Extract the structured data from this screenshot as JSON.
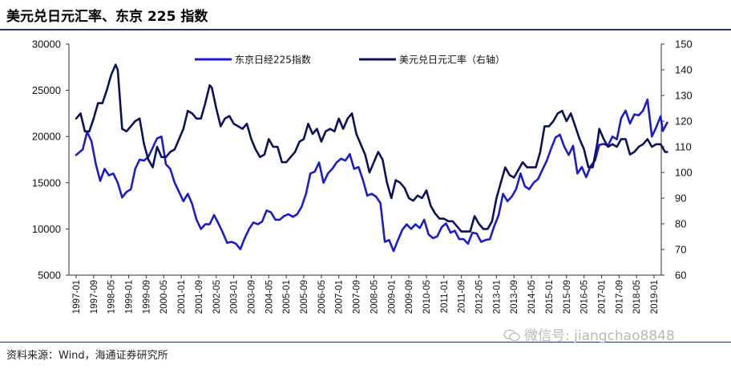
{
  "title": "美元兑日元汇率、东京 225 指数",
  "source": "资料来源：Wind，海通证券研究所",
  "watermark": "微信号: jiangchao8848",
  "colors": {
    "nikkei": "#1c1cc8",
    "usdjpy": "#0b1259",
    "rule": "#1f3864"
  },
  "chart_data": {
    "type": "line",
    "grid": false,
    "legend": "top-center",
    "x": [
      "1997-01",
      "1997-09",
      "1998-05",
      "1999-01",
      "1999-09",
      "2000-05",
      "2001-01",
      "2001-09",
      "2002-05",
      "2003-01",
      "2003-09",
      "2004-05",
      "2005-01",
      "2005-09",
      "2006-05",
      "2007-01",
      "2007-09",
      "2008-05",
      "2009-01",
      "2009-09",
      "2010-05",
      "2011-01",
      "2011-09",
      "2012-05",
      "2013-01",
      "2013-09",
      "2014-05",
      "2015-01",
      "2015-09",
      "2016-05",
      "2017-01",
      "2017-09",
      "2018-05",
      "2019-01"
    ],
    "y_left_ticks": [
      "30000",
      "25000",
      "20000",
      "15000",
      "10000",
      "5000"
    ],
    "y_right_ticks": [
      "150",
      "140",
      "130",
      "120",
      "110",
      "100",
      "90",
      "80",
      "70",
      "60"
    ],
    "y_left_lim": [
      5000,
      30000
    ],
    "y_right_lim": [
      60,
      150
    ],
    "series": [
      {
        "name": "东京日经225指数",
        "axis": "left",
        "points": [
          [
            "1997-01",
            18000
          ],
          [
            "1997-04",
            18600
          ],
          [
            "1997-06",
            20500
          ],
          [
            "1997-08",
            19500
          ],
          [
            "1997-10",
            17000
          ],
          [
            "1997-12",
            15200
          ],
          [
            "1998-02",
            16500
          ],
          [
            "1998-04",
            15800
          ],
          [
            "1998-06",
            16000
          ],
          [
            "1998-08",
            15000
          ],
          [
            "1998-10",
            13400
          ],
          [
            "1998-12",
            14000
          ],
          [
            "1999-02",
            14300
          ],
          [
            "1999-04",
            16500
          ],
          [
            "1999-06",
            17500
          ],
          [
            "1999-08",
            17400
          ],
          [
            "1999-10",
            17800
          ],
          [
            "1999-12",
            18800
          ],
          [
            "2000-02",
            19800
          ],
          [
            "2000-04",
            20000
          ],
          [
            "2000-06",
            17000
          ],
          [
            "2000-08",
            16500
          ],
          [
            "2000-10",
            15000
          ],
          [
            "2000-12",
            14000
          ],
          [
            "2001-02",
            13000
          ],
          [
            "2001-04",
            13800
          ],
          [
            "2001-06",
            12700
          ],
          [
            "2001-08",
            11000
          ],
          [
            "2001-10",
            10000
          ],
          [
            "2001-12",
            10500
          ],
          [
            "2002-02",
            10500
          ],
          [
            "2002-04",
            11500
          ],
          [
            "2002-06",
            10600
          ],
          [
            "2002-08",
            9600
          ],
          [
            "2002-10",
            8500
          ],
          [
            "2002-12",
            8600
          ],
          [
            "2003-02",
            8400
          ],
          [
            "2003-04",
            7800
          ],
          [
            "2003-06",
            9000
          ],
          [
            "2003-08",
            10000
          ],
          [
            "2003-10",
            10700
          ],
          [
            "2003-12",
            10500
          ],
          [
            "2004-02",
            10800
          ],
          [
            "2004-04",
            12000
          ],
          [
            "2004-06",
            11800
          ],
          [
            "2004-08",
            11000
          ],
          [
            "2004-10",
            11000
          ],
          [
            "2004-12",
            11400
          ],
          [
            "2005-02",
            11600
          ],
          [
            "2005-04",
            11300
          ],
          [
            "2005-06",
            11600
          ],
          [
            "2005-08",
            12400
          ],
          [
            "2005-10",
            13800
          ],
          [
            "2005-12",
            16000
          ],
          [
            "2006-02",
            16200
          ],
          [
            "2006-04",
            17200
          ],
          [
            "2006-06",
            15000
          ],
          [
            "2006-08",
            16000
          ],
          [
            "2006-10",
            16500
          ],
          [
            "2006-12",
            17200
          ],
          [
            "2007-02",
            17600
          ],
          [
            "2007-04",
            17400
          ],
          [
            "2007-06",
            18100
          ],
          [
            "2007-08",
            16500
          ],
          [
            "2007-10",
            16700
          ],
          [
            "2007-12",
            15300
          ],
          [
            "2008-02",
            13600
          ],
          [
            "2008-04",
            13800
          ],
          [
            "2008-06",
            13500
          ],
          [
            "2008-08",
            12800
          ],
          [
            "2008-10",
            8600
          ],
          [
            "2008-12",
            8800
          ],
          [
            "2009-02",
            7600
          ],
          [
            "2009-04",
            8800
          ],
          [
            "2009-06",
            9900
          ],
          [
            "2009-08",
            10500
          ],
          [
            "2009-10",
            10000
          ],
          [
            "2009-12",
            10500
          ],
          [
            "2010-02",
            10100
          ],
          [
            "2010-04",
            11000
          ],
          [
            "2010-06",
            9400
          ],
          [
            "2010-08",
            9000
          ],
          [
            "2010-10",
            9200
          ],
          [
            "2010-12",
            10200
          ],
          [
            "2011-02",
            10600
          ],
          [
            "2011-04",
            9600
          ],
          [
            "2011-06",
            9800
          ],
          [
            "2011-08",
            8900
          ],
          [
            "2011-10",
            8900
          ],
          [
            "2011-12",
            8400
          ],
          [
            "2012-02",
            9600
          ],
          [
            "2012-04",
            9500
          ],
          [
            "2012-06",
            8600
          ],
          [
            "2012-08",
            8800
          ],
          [
            "2012-10",
            8900
          ],
          [
            "2012-12",
            10300
          ],
          [
            "2013-02",
            11500
          ],
          [
            "2013-04",
            13800
          ],
          [
            "2013-06",
            13000
          ],
          [
            "2013-08",
            13500
          ],
          [
            "2013-10",
            14300
          ],
          [
            "2013-12",
            16000
          ],
          [
            "2014-02",
            14600
          ],
          [
            "2014-04",
            14300
          ],
          [
            "2014-06",
            15000
          ],
          [
            "2014-08",
            15400
          ],
          [
            "2014-10",
            16400
          ],
          [
            "2014-12",
            17400
          ],
          [
            "2015-02",
            18700
          ],
          [
            "2015-04",
            19900
          ],
          [
            "2015-06",
            20200
          ],
          [
            "2015-08",
            18900
          ],
          [
            "2015-10",
            18000
          ],
          [
            "2015-12",
            19000
          ],
          [
            "2016-02",
            16000
          ],
          [
            "2016-04",
            16700
          ],
          [
            "2016-06",
            15600
          ],
          [
            "2016-08",
            16800
          ],
          [
            "2016-10",
            17400
          ],
          [
            "2016-12",
            19100
          ],
          [
            "2017-02",
            19200
          ],
          [
            "2017-04",
            19000
          ],
          [
            "2017-06",
            20000
          ],
          [
            "2017-08",
            19700
          ],
          [
            "2017-10",
            22000
          ],
          [
            "2017-12",
            22800
          ],
          [
            "2018-02",
            21400
          ],
          [
            "2018-04",
            22400
          ],
          [
            "2018-06",
            22300
          ],
          [
            "2018-08",
            22800
          ],
          [
            "2018-10",
            24000
          ],
          [
            "2018-12",
            20000
          ],
          [
            "2019-02",
            21000
          ],
          [
            "2019-04",
            22200
          ],
          [
            "2019-05",
            20600
          ],
          [
            "2019-07",
            21500
          ]
        ]
      },
      {
        "name": "美元兑日元汇率（右轴）",
        "axis": "right",
        "points": [
          [
            "1997-01",
            121
          ],
          [
            "1997-03",
            123
          ],
          [
            "1997-05",
            116
          ],
          [
            "1997-07",
            116
          ],
          [
            "1997-09",
            121
          ],
          [
            "1997-11",
            127
          ],
          [
            "1998-01",
            127
          ],
          [
            "1998-03",
            132
          ],
          [
            "1998-05",
            138
          ],
          [
            "1998-07",
            142
          ],
          [
            "1998-08",
            140
          ],
          [
            "1998-10",
            117
          ],
          [
            "1998-12",
            116
          ],
          [
            "1999-02",
            118
          ],
          [
            "1999-04",
            120
          ],
          [
            "1999-06",
            121
          ],
          [
            "1999-08",
            111
          ],
          [
            "1999-10",
            105
          ],
          [
            "1999-12",
            102
          ],
          [
            "2000-02",
            110
          ],
          [
            "2000-04",
            106
          ],
          [
            "2000-06",
            106
          ],
          [
            "2000-08",
            108
          ],
          [
            "2000-10",
            109
          ],
          [
            "2000-12",
            113
          ],
          [
            "2001-02",
            117
          ],
          [
            "2001-04",
            124
          ],
          [
            "2001-06",
            123
          ],
          [
            "2001-08",
            121
          ],
          [
            "2001-10",
            121
          ],
          [
            "2001-12",
            127
          ],
          [
            "2002-02",
            134
          ],
          [
            "2002-03",
            133
          ],
          [
            "2002-05",
            125
          ],
          [
            "2002-07",
            118
          ],
          [
            "2002-09",
            121
          ],
          [
            "2002-11",
            122
          ],
          [
            "2003-01",
            119
          ],
          [
            "2003-03",
            118
          ],
          [
            "2003-05",
            117
          ],
          [
            "2003-07",
            119
          ],
          [
            "2003-09",
            113
          ],
          [
            "2003-11",
            109
          ],
          [
            "2004-01",
            106
          ],
          [
            "2004-03",
            107
          ],
          [
            "2004-05",
            113
          ],
          [
            "2004-07",
            110
          ],
          [
            "2004-09",
            110
          ],
          [
            "2004-11",
            104
          ],
          [
            "2005-01",
            104
          ],
          [
            "2005-03",
            106
          ],
          [
            "2005-05",
            108
          ],
          [
            "2005-07",
            112
          ],
          [
            "2005-09",
            113
          ],
          [
            "2005-11",
            119
          ],
          [
            "2006-01",
            115
          ],
          [
            "2006-03",
            117
          ],
          [
            "2006-05",
            112
          ],
          [
            "2006-07",
            116
          ],
          [
            "2006-09",
            117
          ],
          [
            "2006-11",
            116
          ],
          [
            "2007-01",
            121
          ],
          [
            "2007-03",
            117
          ],
          [
            "2007-05",
            121
          ],
          [
            "2007-07",
            123
          ],
          [
            "2007-09",
            115
          ],
          [
            "2007-11",
            111
          ],
          [
            "2008-01",
            107
          ],
          [
            "2008-03",
            100
          ],
          [
            "2008-05",
            104
          ],
          [
            "2008-07",
            108
          ],
          [
            "2008-09",
            105
          ],
          [
            "2008-11",
            96
          ],
          [
            "2009-01",
            90
          ],
          [
            "2009-03",
            97
          ],
          [
            "2009-05",
            96
          ],
          [
            "2009-07",
            94
          ],
          [
            "2009-09",
            90
          ],
          [
            "2009-11",
            89
          ],
          [
            "2010-01",
            91
          ],
          [
            "2010-03",
            90
          ],
          [
            "2010-05",
            93
          ],
          [
            "2010-07",
            87
          ],
          [
            "2010-09",
            84
          ],
          [
            "2010-11",
            82
          ],
          [
            "2011-01",
            82
          ],
          [
            "2011-03",
            81
          ],
          [
            "2011-05",
            81
          ],
          [
            "2011-07",
            79
          ],
          [
            "2011-09",
            77
          ],
          [
            "2011-11",
            77
          ],
          [
            "2012-01",
            77
          ],
          [
            "2012-03",
            83
          ],
          [
            "2012-05",
            80
          ],
          [
            "2012-07",
            78
          ],
          [
            "2012-09",
            78
          ],
          [
            "2012-11",
            81
          ],
          [
            "2013-01",
            90
          ],
          [
            "2013-03",
            96
          ],
          [
            "2013-05",
            102
          ],
          [
            "2013-07",
            99
          ],
          [
            "2013-09",
            98
          ],
          [
            "2013-11",
            101
          ],
          [
            "2014-01",
            104
          ],
          [
            "2014-03",
            102
          ],
          [
            "2014-05",
            102
          ],
          [
            "2014-07",
            102
          ],
          [
            "2014-09",
            108
          ],
          [
            "2014-11",
            118
          ],
          [
            "2015-01",
            118
          ],
          [
            "2015-03",
            120
          ],
          [
            "2015-05",
            123
          ],
          [
            "2015-07",
            124
          ],
          [
            "2015-09",
            120
          ],
          [
            "2015-11",
            123
          ],
          [
            "2016-01",
            118
          ],
          [
            "2016-03",
            113
          ],
          [
            "2016-05",
            109
          ],
          [
            "2016-07",
            102
          ],
          [
            "2016-09",
            102
          ],
          [
            "2016-11",
            111
          ],
          [
            "2016-12",
            117
          ],
          [
            "2017-02",
            113
          ],
          [
            "2017-04",
            110
          ],
          [
            "2017-06",
            111
          ],
          [
            "2017-08",
            110
          ],
          [
            "2017-10",
            113
          ],
          [
            "2017-12",
            113
          ],
          [
            "2018-02",
            107
          ],
          [
            "2018-04",
            108
          ],
          [
            "2018-06",
            110
          ],
          [
            "2018-08",
            111
          ],
          [
            "2018-10",
            113
          ],
          [
            "2018-12",
            110
          ],
          [
            "2019-02",
            111
          ],
          [
            "2019-04",
            111
          ],
          [
            "2019-06",
            108
          ],
          [
            "2019-07",
            108
          ]
        ]
      }
    ]
  }
}
